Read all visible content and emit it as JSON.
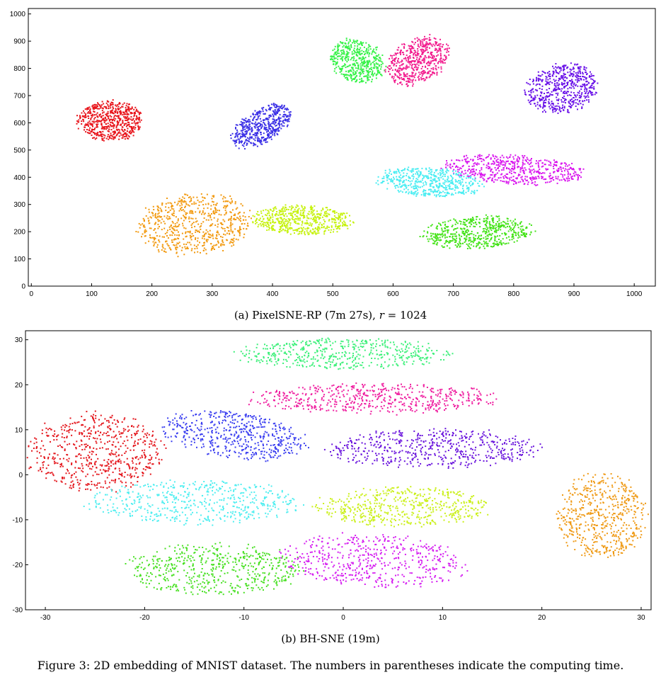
{
  "figure_caption": "Figure 3: 2D embedding of MNIST dataset. The numbers in parentheses indicate the computing time.",
  "chart_data": [
    {
      "type": "scatter",
      "title": "",
      "caption": {
        "prefix": "(a) PixelSNE-RP (7m 27s),",
        "var": "r",
        "suffix": "= 1024"
      },
      "xlabel": "",
      "ylabel": "",
      "xlim": [
        -5,
        1035
      ],
      "ylim": [
        0,
        1020
      ],
      "xticks": [
        0,
        100,
        200,
        300,
        400,
        500,
        600,
        700,
        800,
        900,
        1000
      ],
      "yticks": [
        0,
        100,
        200,
        300,
        400,
        500,
        600,
        700,
        800,
        900,
        1000
      ],
      "clusters": [
        {
          "name": "red",
          "color": "#e8141b",
          "cx": 130,
          "cy": 610,
          "rx": 110,
          "ry": 150,
          "angle": 0,
          "n": 600
        },
        {
          "name": "orange",
          "color": "#f29a10",
          "cx": 270,
          "cy": 230,
          "rx": 190,
          "ry": 240,
          "angle": -15,
          "n": 650
        },
        {
          "name": "blue",
          "color": "#3a2fe6",
          "cx": 380,
          "cy": 590,
          "rx": 80,
          "ry": 180,
          "angle": -25,
          "n": 500
        },
        {
          "name": "green-top",
          "color": "#36f248",
          "cx": 540,
          "cy": 830,
          "rx": 90,
          "ry": 170,
          "angle": 8,
          "n": 480
        },
        {
          "name": "pink",
          "color": "#f21c8e",
          "cx": 640,
          "cy": 830,
          "rx": 100,
          "ry": 190,
          "angle": -15,
          "n": 520
        },
        {
          "name": "purple",
          "color": "#6a12e8",
          "cx": 880,
          "cy": 730,
          "rx": 120,
          "ry": 190,
          "angle": -10,
          "n": 560
        },
        {
          "name": "magenta",
          "color": "#d916ee",
          "cx": 800,
          "cy": 430,
          "rx": 240,
          "ry": 110,
          "angle": -8,
          "n": 560
        },
        {
          "name": "cyan",
          "color": "#49edf2",
          "cx": 660,
          "cy": 385,
          "rx": 180,
          "ry": 110,
          "angle": -12,
          "n": 500
        },
        {
          "name": "yellow-green",
          "color": "#c6f20e",
          "cx": 450,
          "cy": 245,
          "rx": 170,
          "ry": 110,
          "angle": -5,
          "n": 550
        },
        {
          "name": "green",
          "color": "#44e318",
          "cx": 740,
          "cy": 200,
          "rx": 190,
          "ry": 120,
          "angle": 8,
          "n": 550
        }
      ]
    },
    {
      "type": "scatter",
      "title": "",
      "caption": {
        "prefix": "(b) BH-SNE (19m)",
        "var": "",
        "suffix": ""
      },
      "xlabel": "",
      "ylabel": "",
      "xlim": [
        -32,
        31
      ],
      "ylim": [
        -30,
        32
      ],
      "xticks": [
        -30,
        -20,
        -10,
        0,
        10,
        20,
        30
      ],
      "yticks": [
        -30,
        -20,
        -10,
        0,
        10,
        20,
        30
      ],
      "clusters": [
        {
          "name": "green-top",
          "color": "#3df07a",
          "cx": 0,
          "cy": 27,
          "rx": 22,
          "ry": 7,
          "angle": 0,
          "n": 500
        },
        {
          "name": "pink",
          "color": "#ef1fa0",
          "cx": 3,
          "cy": 17,
          "rx": 26,
          "ry": 7,
          "angle": 0,
          "n": 550
        },
        {
          "name": "blue",
          "color": "#3b3ff0",
          "cx": -11,
          "cy": 9,
          "rx": 16,
          "ry": 10,
          "angle": -25,
          "n": 520
        },
        {
          "name": "red",
          "color": "#e4161c",
          "cx": -25,
          "cy": 5,
          "rx": 14,
          "ry": 18,
          "angle": 0,
          "n": 600
        },
        {
          "name": "purple",
          "color": "#6a14dd",
          "cx": 9,
          "cy": 6,
          "rx": 22,
          "ry": 9,
          "angle": 2,
          "n": 540
        },
        {
          "name": "orange",
          "color": "#ef9a15",
          "cx": 26,
          "cy": -9,
          "rx": 9,
          "ry": 20,
          "angle": 0,
          "n": 560
        },
        {
          "name": "cyan",
          "color": "#50eef0",
          "cx": -15,
          "cy": -6,
          "rx": 22,
          "ry": 10,
          "angle": 0,
          "n": 520
        },
        {
          "name": "yellow-green",
          "color": "#cbf01a",
          "cx": 6,
          "cy": -7,
          "rx": 18,
          "ry": 9,
          "angle": 0,
          "n": 520
        },
        {
          "name": "green",
          "color": "#48e022",
          "cx": -13,
          "cy": -21,
          "rx": 18,
          "ry": 12,
          "angle": 0,
          "n": 540
        },
        {
          "name": "magenta",
          "color": "#d51cf0",
          "cx": 3,
          "cy": -19,
          "rx": 19,
          "ry": 12,
          "angle": -10,
          "n": 520
        }
      ]
    }
  ]
}
